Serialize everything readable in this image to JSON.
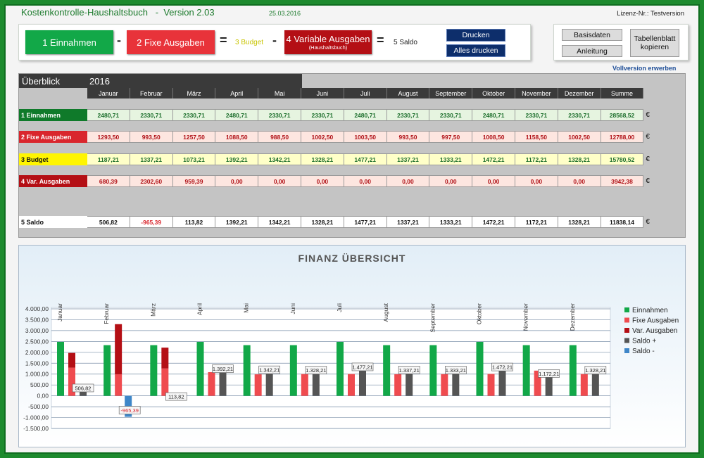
{
  "header": {
    "title": "Kostenkontrolle-Haushaltsbuch   -  Version 2.03",
    "date": "25.03.2016",
    "license": "Lizenz-Nr.: Testversion"
  },
  "nav": {
    "einnahmen": "1    Einnahmen",
    "fixe": "2    Fixe Ausgaben",
    "budget": "3 Budget",
    "variable": "4  Variable Ausgaben",
    "variable_sub": "(Haushaltsbuch)",
    "saldo": "5  Saldo",
    "minus": "-",
    "equals": "=",
    "drucken": "Drucken",
    "alles_drucken": "Alles drucken"
  },
  "side": {
    "basisdaten": "Basisdaten",
    "anleitung": "Anleitung",
    "tabellenblatt": "Tabellenblatt kopieren",
    "vollversion": "Vollversion erwerben"
  },
  "overview": {
    "label": "Überblick",
    "year": "2016",
    "months": [
      "Januar",
      "Februar",
      "März",
      "April",
      "Mai",
      "Juni",
      "Juli",
      "August",
      "September",
      "Oktober",
      "November",
      "Dezember",
      "Summe"
    ],
    "euro": "€",
    "rows": [
      {
        "label": "1  Einnahmen",
        "values": [
          "2480,71",
          "2330,71",
          "2330,71",
          "2480,71",
          "2330,71",
          "2330,71",
          "2480,71",
          "2330,71",
          "2330,71",
          "2480,71",
          "2330,71",
          "2330,71",
          "28568,52"
        ]
      },
      {
        "label": "2  Fixe Ausgaben",
        "values": [
          "1293,50",
          "993,50",
          "1257,50",
          "1088,50",
          "988,50",
          "1002,50",
          "1003,50",
          "993,50",
          "997,50",
          "1008,50",
          "1158,50",
          "1002,50",
          "12788,00"
        ]
      },
      {
        "label": "3  Budget",
        "values": [
          "1187,21",
          "1337,21",
          "1073,21",
          "1392,21",
          "1342,21",
          "1328,21",
          "1477,21",
          "1337,21",
          "1333,21",
          "1472,21",
          "1172,21",
          "1328,21",
          "15780,52"
        ]
      },
      {
        "label": "4  Var. Ausgaben",
        "values": [
          "680,39",
          "2302,60",
          "959,39",
          "0,00",
          "0,00",
          "0,00",
          "0,00",
          "0,00",
          "0,00",
          "0,00",
          "0,00",
          "0,00",
          "3942,38"
        ]
      },
      {
        "label": "5  Saldo",
        "values": [
          "506,82",
          "-965,39",
          "113,82",
          "1392,21",
          "1342,21",
          "1328,21",
          "1477,21",
          "1337,21",
          "1333,21",
          "1472,21",
          "1172,21",
          "1328,21",
          "11838,14"
        ]
      }
    ]
  },
  "colors": {
    "einnahmen": "#12a848",
    "fixe": "#ef4b4f",
    "variable": "#b40f15",
    "saldo_plus": "#555555",
    "saldo_minus": "#3e86c8"
  },
  "chart_data": {
    "type": "bar",
    "title": "FINANZ  ÜBERSICHT",
    "categories": [
      "Januar",
      "Februar",
      "März",
      "April",
      "Mai",
      "Juni",
      "Juli",
      "August",
      "September",
      "Oktober",
      "November",
      "Dezember"
    ],
    "ylim": [
      -1500,
      4000
    ],
    "yticks": [
      "4.000,00",
      "3.500,00",
      "3.000,00",
      "2.500,00",
      "2.000,00",
      "1.500,00",
      "1.000,00",
      "500,00",
      "0,00",
      "-500,00",
      "-1.000,00",
      "-1.500,00"
    ],
    "legend_position": "right",
    "series": [
      {
        "name": "Einnahmen",
        "values": [
          2480.71,
          2330.71,
          2330.71,
          2480.71,
          2330.71,
          2330.71,
          2480.71,
          2330.71,
          2330.71,
          2480.71,
          2330.71,
          2330.71
        ]
      },
      {
        "name": "Fixe Ausgaben",
        "values": [
          1293.5,
          993.5,
          1257.5,
          1088.5,
          988.5,
          1002.5,
          1003.5,
          993.5,
          997.5,
          1008.5,
          1158.5,
          1002.5
        ]
      },
      {
        "name": "Var. Ausgaben",
        "values": [
          680.39,
          2302.6,
          959.39,
          0,
          0,
          0,
          0,
          0,
          0,
          0,
          0,
          0
        ]
      },
      {
        "name": "Saldo +",
        "values": [
          506.82,
          0,
          113.82,
          1392.21,
          1342.21,
          1328.21,
          1477.21,
          1337.21,
          1333.21,
          1472.21,
          1172.21,
          1328.21
        ]
      },
      {
        "name": "Saldo -",
        "values": [
          0,
          -965.39,
          0,
          0,
          0,
          0,
          0,
          0,
          0,
          0,
          0,
          0
        ]
      }
    ],
    "data_labels": [
      "506,82",
      "-965,39",
      "113,82",
      "1.392,21",
      "1.342,21",
      "1.328,21",
      "1.477,21",
      "1.337,21",
      "1.333,21",
      "1.472,21",
      "1.172,21",
      "1.328,21"
    ]
  }
}
